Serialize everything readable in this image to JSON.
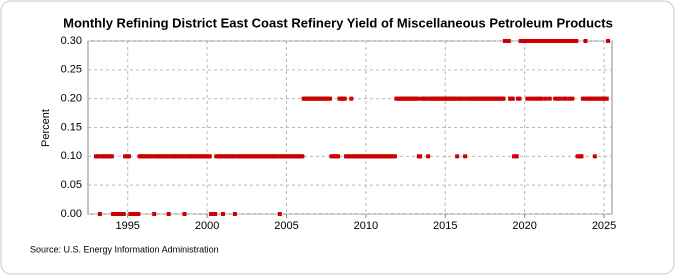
{
  "chart_data": {
    "type": "scatter",
    "title": "Monthly Refining District East Coast Refinery Yield of Miscellaneous Petroleum Products",
    "y_label": "Percent",
    "source": "Source: U.S. Energy Information Administration",
    "color": "#cc0000",
    "grid": true,
    "xlim": [
      1992.5,
      2025.5
    ],
    "xticks": [
      1995,
      2000,
      2005,
      2010,
      2015,
      2020,
      2025
    ],
    "ylim": [
      0,
      0.3
    ],
    "yticks": [
      {
        "value": 0,
        "label": "0.00"
      },
      {
        "value": 0.05,
        "label": "0.05"
      },
      {
        "value": 0.1,
        "label": "0.10"
      },
      {
        "value": 0.15,
        "label": "0.15"
      },
      {
        "value": 0.2,
        "label": "0.20"
      },
      {
        "value": 0.25,
        "label": "0.25"
      },
      {
        "value": 0.3,
        "label": "0.30"
      }
    ],
    "x": [
      1993,
      1993.08,
      1993.17,
      1993.25,
      1993.33,
      1993.42,
      1993.5,
      1993.58,
      1993.67,
      1993.75,
      1993.83,
      1993.92,
      1994,
      1994.08,
      1994.17,
      1994.25,
      1994.33,
      1994.42,
      1994.5,
      1994.58,
      1994.67,
      1994.75,
      1994.83,
      1994.92,
      1995,
      1995.08,
      1995.17,
      1995.25,
      1995.33,
      1995.42,
      1995.5,
      1995.58,
      1995.67,
      1995.75,
      1995.83,
      1995.92,
      1996,
      1996.08,
      1996.17,
      1996.25,
      1996.33,
      1996.42,
      1996.5,
      1996.58,
      1996.67,
      1996.75,
      1996.83,
      1996.92,
      1997,
      1997.08,
      1997.17,
      1997.25,
      1997.33,
      1997.42,
      1997.5,
      1997.58,
      1997.67,
      1997.75,
      1997.83,
      1997.92,
      1998,
      1998.08,
      1998.17,
      1998.25,
      1998.33,
      1998.42,
      1998.5,
      1998.58,
      1998.67,
      1998.75,
      1998.83,
      1998.92,
      1999,
      1999.08,
      1999.17,
      1999.25,
      1999.33,
      1999.42,
      1999.5,
      1999.58,
      1999.67,
      1999.75,
      1999.83,
      1999.92,
      2000,
      2000.08,
      2000.17,
      2000.25,
      2000.33,
      2000.42,
      2000.5,
      2000.58,
      2000.67,
      2000.75,
      2000.83,
      2000.92,
      2001,
      2001.08,
      2001.17,
      2001.25,
      2001.33,
      2001.42,
      2001.5,
      2001.58,
      2001.67,
      2001.75,
      2001.83,
      2001.92,
      2002,
      2002.08,
      2002.17,
      2002.25,
      2002.33,
      2002.42,
      2002.5,
      2002.58,
      2002.67,
      2002.75,
      2002.83,
      2002.92,
      2003,
      2003.08,
      2003.17,
      2003.25,
      2003.33,
      2003.42,
      2003.5,
      2003.58,
      2003.67,
      2003.75,
      2003.83,
      2003.92,
      2004,
      2004.08,
      2004.17,
      2004.25,
      2004.33,
      2004.42,
      2004.5,
      2004.58,
      2004.67,
      2004.75,
      2004.83,
      2004.92,
      2005,
      2005.08,
      2005.17,
      2005.25,
      2005.33,
      2005.42,
      2005.5,
      2005.58,
      2005.67,
      2005.75,
      2005.83,
      2005.92,
      2006,
      2006.08,
      2006.17,
      2006.25,
      2006.33,
      2006.42,
      2006.5,
      2006.58,
      2006.67,
      2006.75,
      2006.83,
      2006.92,
      2007,
      2007.08,
      2007.17,
      2007.25,
      2007.33,
      2007.42,
      2007.5,
      2007.58,
      2007.67,
      2007.75,
      2007.83,
      2007.92,
      2008,
      2008.08,
      2008.17,
      2008.25,
      2008.33,
      2008.42,
      2008.5,
      2008.58,
      2008.67,
      2008.75,
      2008.83,
      2008.92,
      2009,
      2009.08,
      2009.17,
      2009.25,
      2009.33,
      2009.42,
      2009.5,
      2009.58,
      2009.67,
      2009.75,
      2009.83,
      2009.92,
      2010,
      2010.08,
      2010.17,
      2010.25,
      2010.33,
      2010.42,
      2010.5,
      2010.58,
      2010.67,
      2010.75,
      2010.83,
      2010.92,
      2011,
      2011.08,
      2011.17,
      2011.25,
      2011.33,
      2011.42,
      2011.5,
      2011.58,
      2011.67,
      2011.75,
      2011.83,
      2011.92,
      2012,
      2012.08,
      2012.17,
      2012.25,
      2012.33,
      2012.42,
      2012.5,
      2012.58,
      2012.67,
      2012.75,
      2012.83,
      2012.92,
      2013,
      2013.08,
      2013.17,
      2013.25,
      2013.33,
      2013.42,
      2013.5,
      2013.58,
      2013.67,
      2013.75,
      2013.83,
      2013.92,
      2014,
      2014.08,
      2014.17,
      2014.25,
      2014.33,
      2014.42,
      2014.5,
      2014.58,
      2014.67,
      2014.75,
      2014.83,
      2014.92,
      2015,
      2015.08,
      2015.17,
      2015.25,
      2015.33,
      2015.42,
      2015.5,
      2015.58,
      2015.67,
      2015.75,
      2015.83,
      2015.92,
      2016,
      2016.08,
      2016.17,
      2016.25,
      2016.33,
      2016.42,
      2016.5,
      2016.58,
      2016.67,
      2016.75,
      2016.83,
      2016.92,
      2017,
      2017.08,
      2017.17,
      2017.25,
      2017.33,
      2017.42,
      2017.5,
      2017.58,
      2017.67,
      2017.75,
      2017.83,
      2017.92,
      2018,
      2018.08,
      2018.17,
      2018.25,
      2018.33,
      2018.42,
      2018.5,
      2018.58,
      2018.67,
      2018.75,
      2018.83,
      2018.92,
      2019,
      2019.08,
      2019.17,
      2019.25,
      2019.33,
      2019.42,
      2019.5,
      2019.58,
      2019.67,
      2019.75,
      2019.83,
      2019.92,
      2020,
      2020.08,
      2020.17,
      2020.25,
      2020.33,
      2020.42,
      2020.5,
      2020.58,
      2020.67,
      2020.75,
      2020.83,
      2020.92,
      2021,
      2021.08,
      2021.17,
      2021.25,
      2021.33,
      2021.42,
      2021.5,
      2021.58,
      2021.67,
      2021.75,
      2021.83,
      2021.92,
      2022,
      2022.08,
      2022.17,
      2022.25,
      2022.33,
      2022.42,
      2022.5,
      2022.58,
      2022.67,
      2022.75,
      2022.83,
      2022.92,
      2023,
      2023.08,
      2023.17,
      2023.25,
      2023.33,
      2023.42,
      2023.5,
      2023.58,
      2023.67,
      2023.75,
      2023.83,
      2023.92,
      2024,
      2024.08,
      2024.17,
      2024.25,
      2024.33,
      2024.42,
      2024.5,
      2024.58,
      2024.67,
      2024.75,
      2024.83,
      2024.92,
      2025,
      2025.08,
      2025.17,
      2025.25
    ],
    "values": [
      0.1,
      0.1,
      0.1,
      0,
      0.1,
      0.1,
      0.1,
      0.1,
      0.1,
      0.1,
      0.1,
      0.1,
      0.1,
      0,
      0,
      0,
      0,
      0,
      0,
      0,
      0,
      0,
      0.1,
      0.1,
      0.1,
      0.1,
      0,
      0,
      0,
      0,
      0,
      0,
      0,
      0.1,
      0.1,
      0.1,
      0.1,
      0.1,
      0.1,
      0.1,
      0.1,
      0.1,
      0.1,
      0.1,
      0,
      0.1,
      0.1,
      0.1,
      0.1,
      0.1,
      0.1,
      0.1,
      0.1,
      0.1,
      0.1,
      0,
      0.1,
      0.1,
      0.1,
      0.1,
      0.1,
      0.1,
      0.1,
      0.1,
      0.1,
      0.1,
      0.1,
      0,
      0.1,
      0.1,
      0.1,
      0.1,
      0.1,
      0.1,
      0.1,
      0.1,
      0.1,
      0.1,
      0.1,
      0.1,
      0.1,
      0.1,
      0.1,
      0.1,
      0.1,
      0.1,
      0.1,
      0,
      0,
      0,
      0,
      0.1,
      0.1,
      0.1,
      0.1,
      0.1,
      0,
      0.1,
      0.1,
      0.1,
      0.1,
      0.1,
      0.1,
      0.1,
      0.1,
      0,
      0.1,
      0.1,
      0.1,
      0.1,
      0.1,
      0.1,
      0.1,
      0.1,
      0.1,
      0.1,
      0.1,
      0.1,
      0.1,
      0.1,
      0.1,
      0.1,
      0.1,
      0.1,
      0.1,
      0.1,
      0.1,
      0.1,
      0.1,
      0.1,
      0.1,
      0.1,
      0.1,
      0.1,
      0.1,
      0.1,
      0.1,
      0.1,
      0.1,
      0,
      0.1,
      0.1,
      0.1,
      0.1,
      0.1,
      0.1,
      0.1,
      0.1,
      0.1,
      0.1,
      0.1,
      0.1,
      0.1,
      0.1,
      0.1,
      0.1,
      0.1,
      0.2,
      0.2,
      0.2,
      0.2,
      0.2,
      0.2,
      0.2,
      0.2,
      0.2,
      0.2,
      0.2,
      0.2,
      0.2,
      0.2,
      0.2,
      0.2,
      0.2,
      0.2,
      0.2,
      0.2,
      0.2,
      0.1,
      0.1,
      0.1,
      0.1,
      0.1,
      0.1,
      0.2,
      0.2,
      0.2,
      0.2,
      0.2,
      0.1,
      0.1,
      0.1,
      0.1,
      0.2,
      0.1,
      0.1,
      0.1,
      0.1,
      0.1,
      0.1,
      0.1,
      0.1,
      0.1,
      0.1,
      0.1,
      0.1,
      0.1,
      0.1,
      0.1,
      0.1,
      0.1,
      0.1,
      0.1,
      0.1,
      0.1,
      0.1,
      0.1,
      0.1,
      0.1,
      0.1,
      0.1,
      0.1,
      0.1,
      0.1,
      0.1,
      0.1,
      0.1,
      0.2,
      0.2,
      0.2,
      0.2,
      0.2,
      0.2,
      0.2,
      0.2,
      0.2,
      0.2,
      0.2,
      0.2,
      0.2,
      0.2,
      0.2,
      0.2,
      0.2,
      0.1,
      0.1,
      0.2,
      0.2,
      0.2,
      0.2,
      0.2,
      0.1,
      0.2,
      0.2,
      0.2,
      0.2,
      0.2,
      0.2,
      0.2,
      0.2,
      0.2,
      0.2,
      0.2,
      0.2,
      0.2,
      0.2,
      0.2,
      0.2,
      0.2,
      0.2,
      0.2,
      0.2,
      0.2,
      0.1,
      0.2,
      0.2,
      0.2,
      0.2,
      0.2,
      0.1,
      0.2,
      0.2,
      0.2,
      0.2,
      0.2,
      0.2,
      0.2,
      0.2,
      0.2,
      0.2,
      0.2,
      0.2,
      0.2,
      0.2,
      0.2,
      0.2,
      0.2,
      0.2,
      0.2,
      0.2,
      0.2,
      0.2,
      0.2,
      0.2,
      0.2,
      0.2,
      0.2,
      0.2,
      0.2,
      0.3,
      0.3,
      0.3,
      0.3,
      0.2,
      0.2,
      0.2,
      0.1,
      0.1,
      0.1,
      0.2,
      0.2,
      0.3,
      0.3,
      0.3,
      0.3,
      0.3,
      0.2,
      0.3,
      0.2,
      0.3,
      0.2,
      0.3,
      0.2,
      0.3,
      0.2,
      0.2,
      0.3,
      0.2,
      0.3,
      0.3,
      0.2,
      0.3,
      0.3,
      0.2,
      0.3,
      0.3,
      0.3,
      0.2,
      0.3,
      0.2,
      0.3,
      0.2,
      0.3,
      0.3,
      0.2,
      0.2,
      0.3,
      0.3,
      0.2,
      0.3,
      0.2,
      0.3,
      0.3,
      0.3,
      0.1,
      0.1,
      0.1,
      0.1,
      0.2,
      0.2,
      0.3,
      0.2,
      0.2,
      0.2,
      0.2,
      0.2,
      0.2,
      0.1,
      0.2,
      0.2,
      0.2,
      0.2,
      0.2,
      0.2,
      0.2,
      0.2,
      0.2,
      0.3
    ]
  }
}
